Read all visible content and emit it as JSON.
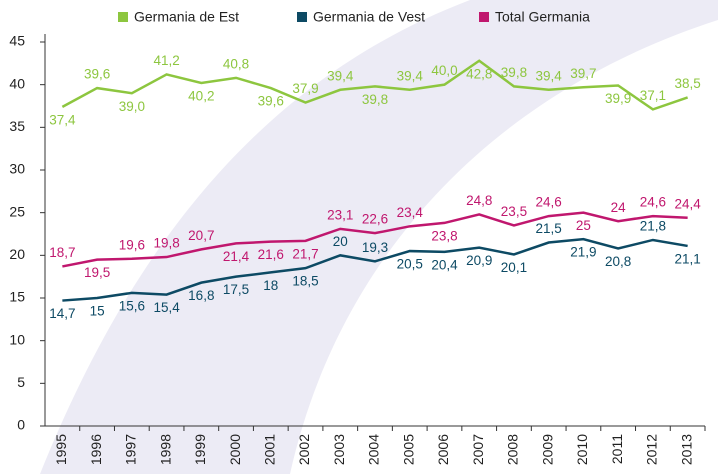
{
  "chart_data": {
    "type": "line",
    "categories": [
      "1995",
      "1996",
      "1997",
      "1998",
      "1999",
      "2000",
      "2001",
      "2002",
      "2003",
      "2004",
      "2005",
      "2006",
      "2007",
      "2008",
      "2009",
      "2010",
      "2011",
      "2012",
      "2013"
    ],
    "series": [
      {
        "name": "Germania de Est",
        "color": "#8dc63f",
        "values": [
          37.4,
          39.6,
          39.0,
          41.2,
          40.2,
          40.8,
          39.6,
          37.9,
          39.4,
          39.8,
          39.4,
          40.0,
          42.8,
          39.8,
          39.4,
          39.7,
          39.9,
          37.1,
          38.5
        ],
        "value_labels": [
          "37,4",
          "39,6",
          "39,0",
          "41,2",
          "40,2",
          "40,8",
          "39,6",
          "37,9",
          "39,4",
          "39,8",
          "39,4",
          "40,0",
          "42,8",
          "39,8",
          "39,4",
          "39,7",
          "39,9",
          "37,1",
          "38,5"
        ]
      },
      {
        "name": "Germania de Vest",
        "color": "#0d4a64",
        "values": [
          14.7,
          15,
          15.6,
          15.4,
          16.8,
          17.5,
          18,
          18.5,
          20,
          19.3,
          20.5,
          20.4,
          20.9,
          20.1,
          21.5,
          21.9,
          20.8,
          21.8,
          21.1
        ],
        "value_labels": [
          "14,7",
          "15",
          "15,6",
          "15,4",
          "16,8",
          "17,5",
          "18",
          "18,5",
          "20",
          "19,3",
          "20,5",
          "20,4",
          "20,9",
          "20,1",
          "21,5",
          "21,9",
          "20,8",
          "21,8",
          "21,1"
        ]
      },
      {
        "name": "Total Germania",
        "color": "#c0176e",
        "values": [
          18.7,
          19.5,
          19.6,
          19.8,
          20.7,
          21.4,
          21.6,
          21.7,
          23.1,
          22.6,
          23.4,
          23.8,
          24.8,
          23.5,
          24.6,
          25,
          24,
          24.6,
          24.4
        ],
        "value_labels": [
          "18,7",
          "19,5",
          "19,6",
          "19,8",
          "20,7",
          "21,4",
          "21,6",
          "21,7",
          "23,1",
          "22,6",
          "23,4",
          "23,8",
          "24,8",
          "23,5",
          "24,6",
          "25",
          "24",
          "24,6",
          "24,4"
        ]
      }
    ],
    "ylim": [
      0,
      45
    ],
    "yticks": [
      0,
      5,
      10,
      15,
      20,
      25,
      30,
      35,
      40,
      45
    ],
    "legend": "top"
  }
}
